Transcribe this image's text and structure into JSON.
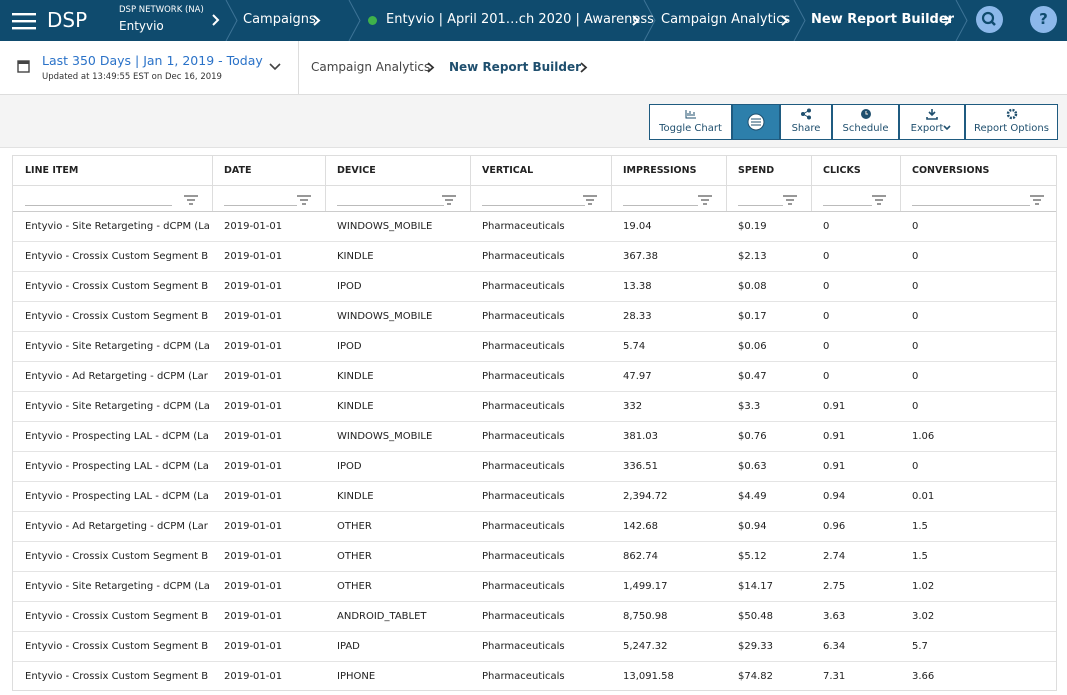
{
  "nav": {
    "brand": "DSP",
    "network_label": "DSP NETWORK (NA)",
    "network_name": "Entyvio",
    "crumbs": [
      "Campaigns",
      "Entyvio | April 201…ch 2020 | Awareness",
      "Campaign Analytics",
      "New Report Builder"
    ],
    "help": "?"
  },
  "subheader": {
    "date_range": "Last 350 Days | Jan 1, 2019 - Today",
    "updated": "Updated at 13:49:55 EST on Dec 16, 2019",
    "crumbs": [
      "Campaign Analytics",
      "New Report Builder"
    ]
  },
  "toolbar": {
    "buttons": [
      "Toggle Chart",
      "Share",
      "Schedule",
      "Export",
      "Report Options"
    ]
  },
  "table": {
    "columns": [
      "LINE ITEM",
      "DATE",
      "DEVICE",
      "VERTICAL",
      "IMPRESSIONS",
      "SPEND",
      "CLICKS",
      "CONVERSIONS"
    ],
    "rows": [
      [
        "Entyvio - Site Retargeting - dCPM (La",
        "2019-01-01",
        "WINDOWS_MOBILE",
        "Pharmaceuticals",
        "19.04",
        "$0.19",
        "0",
        "0"
      ],
      [
        "Entyvio - Crossix Custom Segment B",
        "2019-01-01",
        "KINDLE",
        "Pharmaceuticals",
        "367.38",
        "$2.13",
        "0",
        "0"
      ],
      [
        "Entyvio - Crossix Custom Segment B",
        "2019-01-01",
        "IPOD",
        "Pharmaceuticals",
        "13.38",
        "$0.08",
        "0",
        "0"
      ],
      [
        "Entyvio - Crossix Custom Segment B",
        "2019-01-01",
        "WINDOWS_MOBILE",
        "Pharmaceuticals",
        "28.33",
        "$0.17",
        "0",
        "0"
      ],
      [
        "Entyvio - Site Retargeting - dCPM (La",
        "2019-01-01",
        "IPOD",
        "Pharmaceuticals",
        "5.74",
        "$0.06",
        "0",
        "0"
      ],
      [
        "Entyvio - Ad Retargeting - dCPM (Lar",
        "2019-01-01",
        "KINDLE",
        "Pharmaceuticals",
        "47.97",
        "$0.47",
        "0",
        "0"
      ],
      [
        "Entyvio - Site Retargeting - dCPM (La",
        "2019-01-01",
        "KINDLE",
        "Pharmaceuticals",
        "332",
        "$3.3",
        "0.91",
        "0"
      ],
      [
        "Entyvio - Prospecting LAL - dCPM (La",
        "2019-01-01",
        "WINDOWS_MOBILE",
        "Pharmaceuticals",
        "381.03",
        "$0.76",
        "0.91",
        "1.06"
      ],
      [
        "Entyvio - Prospecting LAL - dCPM (La",
        "2019-01-01",
        "IPOD",
        "Pharmaceuticals",
        "336.51",
        "$0.63",
        "0.91",
        "0"
      ],
      [
        "Entyvio - Prospecting LAL - dCPM (La",
        "2019-01-01",
        "KINDLE",
        "Pharmaceuticals",
        "2,394.72",
        "$4.49",
        "0.94",
        "0.01"
      ],
      [
        "Entyvio - Ad Retargeting - dCPM (Lar",
        "2019-01-01",
        "OTHER",
        "Pharmaceuticals",
        "142.68",
        "$0.94",
        "0.96",
        "1.5"
      ],
      [
        "Entyvio - Crossix Custom Segment B",
        "2019-01-01",
        "OTHER",
        "Pharmaceuticals",
        "862.74",
        "$5.12",
        "2.74",
        "1.5"
      ],
      [
        "Entyvio - Site Retargeting - dCPM (La",
        "2019-01-01",
        "OTHER",
        "Pharmaceuticals",
        "1,499.17",
        "$14.17",
        "2.75",
        "1.02"
      ],
      [
        "Entyvio - Crossix Custom Segment B",
        "2019-01-01",
        "ANDROID_TABLET",
        "Pharmaceuticals",
        "8,750.98",
        "$50.48",
        "3.63",
        "3.02"
      ],
      [
        "Entyvio - Crossix Custom Segment B",
        "2019-01-01",
        "IPAD",
        "Pharmaceuticals",
        "5,247.32",
        "$29.33",
        "6.34",
        "5.7"
      ],
      [
        "Entyvio - Crossix Custom Segment B",
        "2019-01-01",
        "IPHONE",
        "Pharmaceuticals",
        "13,091.58",
        "$74.82",
        "7.31",
        "3.66"
      ]
    ]
  }
}
